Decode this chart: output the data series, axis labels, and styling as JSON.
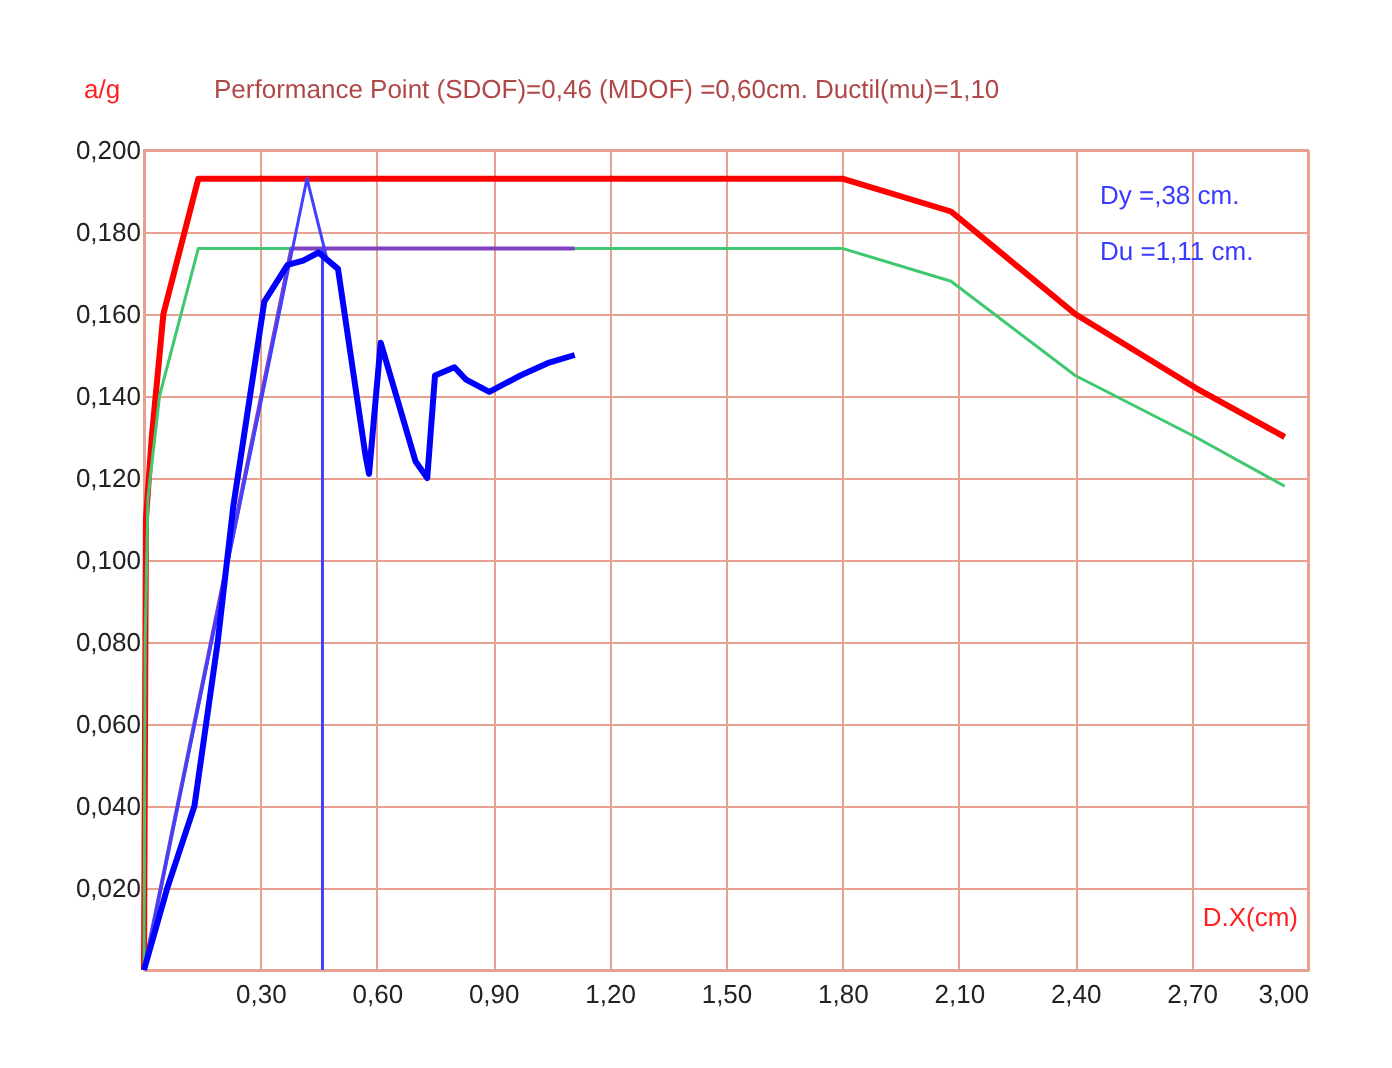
{
  "chart_data": {
    "type": "line",
    "title": "Performance Point (SDOF)=0,46  (MDOF) =0,60cm.   Ductil(mu)=1,10",
    "xlabel": "D.X(cm)",
    "ylabel": "a/g",
    "annotations": [
      "Dy =,38 cm.",
      "Du =1,11 cm."
    ],
    "series": [
      {
        "color": "#ff0000",
        "x": [
          0,
          0.005,
          0.02,
          0.05,
          0.14,
          1.8,
          2.08,
          2.4,
          2.71,
          2.94
        ],
        "values": [
          0,
          0.11,
          0.13,
          0.16,
          0.193,
          0.193,
          0.185,
          0.16,
          0.142,
          0.13
        ]
      },
      {
        "color": "#40c870",
        "x": [
          0,
          0.003,
          0.01,
          0.04,
          0.14,
          1.8,
          2.08,
          2.4,
          2.71,
          2.94
        ],
        "values": [
          0,
          0.08,
          0.115,
          0.14,
          0.176,
          0.176,
          0.168,
          0.145,
          0.13,
          0.118
        ]
      },
      {
        "color": "#8040c0",
        "x": [
          0,
          0.38,
          1.11
        ],
        "values": [
          0,
          0.176,
          0.176
        ]
      },
      {
        "color": "#4040ff",
        "x": [
          0,
          0.42,
          0.47
        ],
        "values": [
          0,
          0.193,
          0.174
        ]
      },
      {
        "color": "#4040ff",
        "x": [
          0.46,
          0.46
        ],
        "values": [
          0,
          0.176
        ]
      },
      {
        "color": "#0000ff",
        "x": [
          0,
          0.06,
          0.13,
          0.19,
          0.23,
          0.31,
          0.37,
          0.41,
          0.45,
          0.5,
          0.57,
          0.58,
          0.61,
          0.7,
          0.73,
          0.75,
          0.8,
          0.83,
          0.89,
          0.97,
          1.04,
          1.11
        ],
        "values": [
          0,
          0.02,
          0.04,
          0.08,
          0.113,
          0.163,
          0.172,
          0.173,
          0.175,
          0.171,
          0.126,
          0.121,
          0.153,
          0.124,
          0.12,
          0.145,
          0.147,
          0.144,
          0.141,
          0.145,
          0.148,
          0.15
        ]
      }
    ],
    "xlim": [
      0,
      3.0
    ],
    "ylim": [
      0,
      0.2
    ],
    "xticks": [
      {
        "value": 0,
        "label": null
      },
      {
        "value": 0.3,
        "label": "0,30"
      },
      {
        "value": 0.6,
        "label": "0,60"
      },
      {
        "value": 0.9,
        "label": "0,90"
      },
      {
        "value": 1.2,
        "label": "1,20"
      },
      {
        "value": 1.5,
        "label": "1,50"
      },
      {
        "value": 1.8,
        "label": "1,80"
      },
      {
        "value": 2.1,
        "label": "2,10"
      },
      {
        "value": 2.4,
        "label": "2,40"
      },
      {
        "value": 2.7,
        "label": "2,70"
      },
      {
        "value": 3.0,
        "label": "3,00"
      }
    ],
    "yticks": [
      {
        "value": 0,
        "label": null
      },
      {
        "value": 0.02,
        "label": "0,020"
      },
      {
        "value": 0.04,
        "label": "0,040"
      },
      {
        "value": 0.06,
        "label": "0,060"
      },
      {
        "value": 0.08,
        "label": "0,080"
      },
      {
        "value": 0.1,
        "label": "0,100"
      },
      {
        "value": 0.12,
        "label": "0,120"
      },
      {
        "value": 0.14,
        "label": "0,140"
      },
      {
        "value": 0.16,
        "label": "0,160"
      },
      {
        "value": 0.18,
        "label": "0,180"
      },
      {
        "value": 0.2,
        "label": "0,200"
      }
    ],
    "grid": true,
    "legend": false
  }
}
